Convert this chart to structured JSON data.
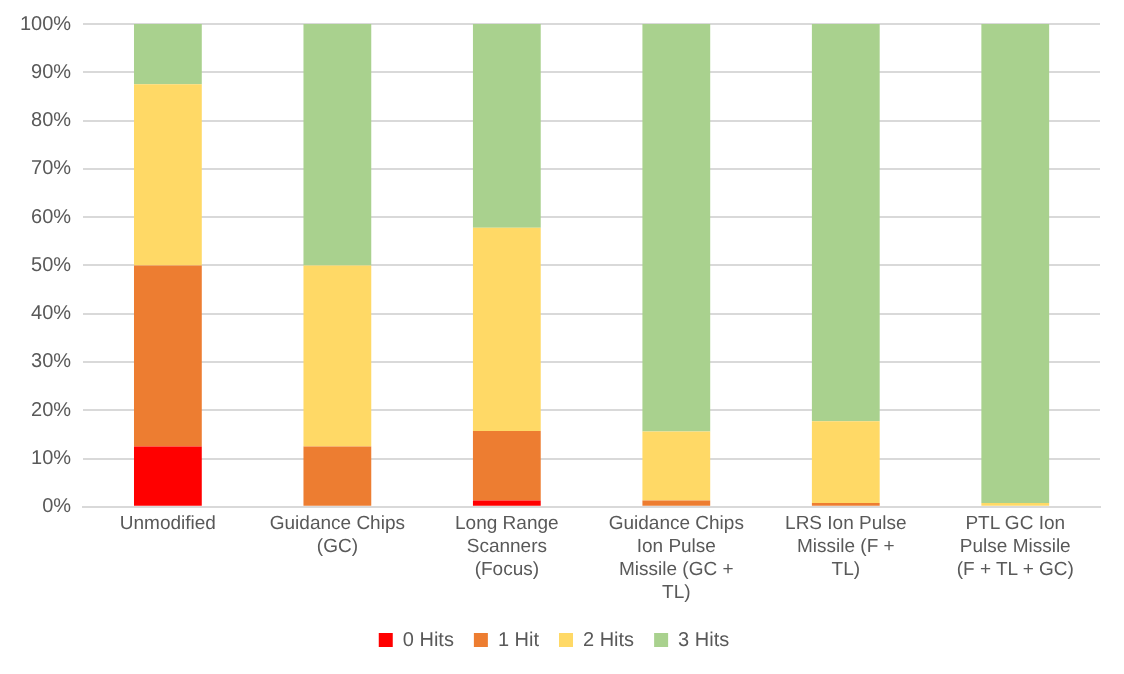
{
  "chart_data": {
    "type": "bar",
    "stacked": true,
    "categories": [
      "Unmodified",
      "Guidance Chips (GC)",
      "Long Range Scanners (Focus)",
      "Guidance Chips Ion Pulse Missile (GC + TL)",
      "LRS Ion Pulse Missile (F + TL)",
      "PTL GC Ion Pulse Missile (F + TL + GC)"
    ],
    "series": [
      {
        "name": "0 Hits",
        "color": "#ff0000",
        "values": [
          12.5,
          0,
          1.3,
          0,
          0,
          0
        ]
      },
      {
        "name": "1 Hit",
        "color": "#ed7d31",
        "values": [
          37.5,
          12.5,
          14.4,
          1.3,
          0.8,
          0
        ]
      },
      {
        "name": "2 Hits",
        "color": "#ffd966",
        "values": [
          37.5,
          37.5,
          42.1,
          14.3,
          16.9,
          0.8
        ]
      },
      {
        "name": "3 Hits",
        "color": "#a9d18e",
        "values": [
          12.5,
          50,
          42.2,
          84.4,
          82.3,
          99.2
        ]
      }
    ],
    "ylim": [
      0,
      100
    ],
    "yticks": [
      {
        "value": 0,
        "label": "0%"
      },
      {
        "value": 10,
        "label": "10%"
      },
      {
        "value": 20,
        "label": "20%"
      },
      {
        "value": 30,
        "label": "30%"
      },
      {
        "value": 40,
        "label": "40%"
      },
      {
        "value": 50,
        "label": "50%"
      },
      {
        "value": 60,
        "label": "60%"
      },
      {
        "value": 70,
        "label": "70%"
      },
      {
        "value": 80,
        "label": "80%"
      },
      {
        "value": 90,
        "label": "90%"
      },
      {
        "value": 100,
        "label": "100%"
      }
    ],
    "grid": "y",
    "legend": "bottom"
  }
}
